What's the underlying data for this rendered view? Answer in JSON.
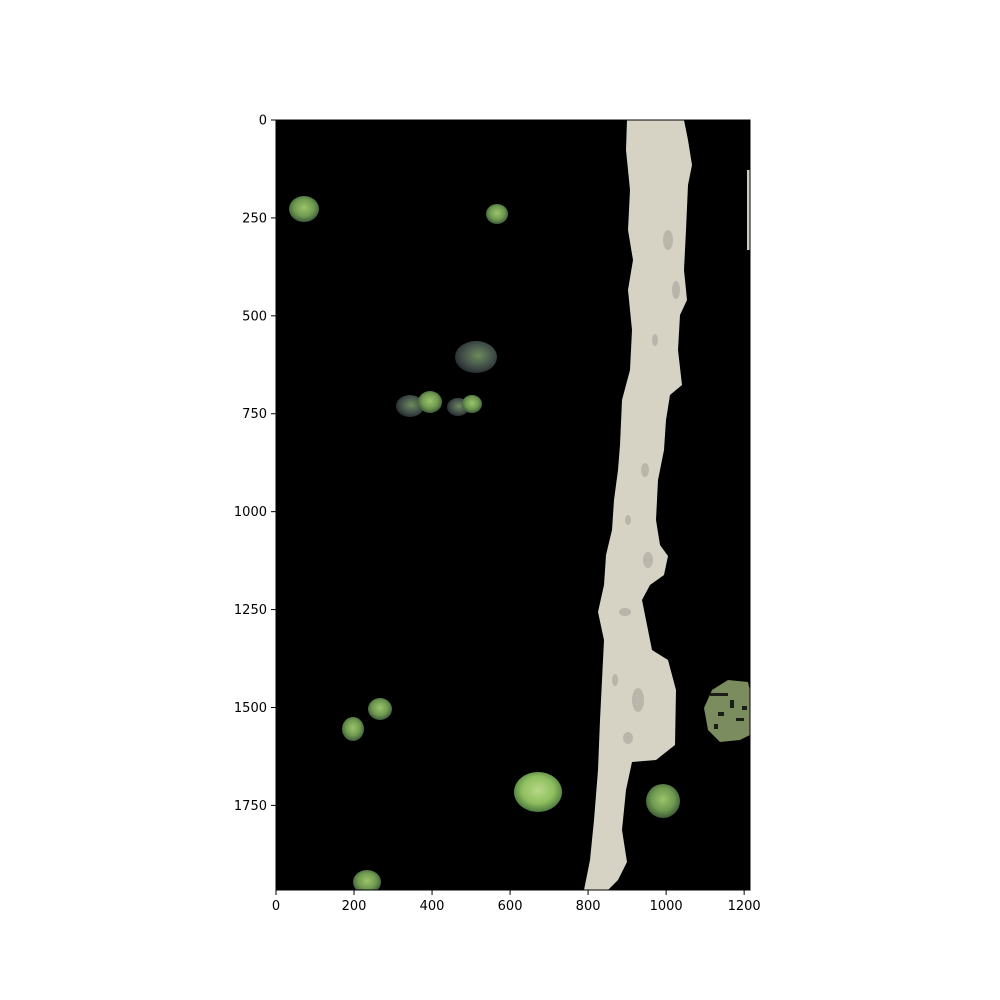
{
  "chart_data": {
    "type": "image",
    "title": "",
    "xlabel": "",
    "ylabel": "",
    "xlim": [
      0,
      1215
    ],
    "ylim": [
      1966,
      0
    ],
    "x_ticks": [
      0,
      200,
      400,
      600,
      800,
      1000,
      1200
    ],
    "y_ticks": [
      0,
      250,
      500,
      750,
      1000,
      1250,
      1500,
      1750
    ],
    "x_tick_labels": [
      "0",
      "200",
      "400",
      "600",
      "800",
      "1000",
      "1200"
    ],
    "y_tick_labels": [
      "0",
      "250",
      "500",
      "750",
      "1000",
      "1250",
      "1500",
      "1750"
    ],
    "grid": false,
    "background": "#000000",
    "path_color": "#d7d3c6",
    "vegetation_color": "#7fa55a"
  }
}
